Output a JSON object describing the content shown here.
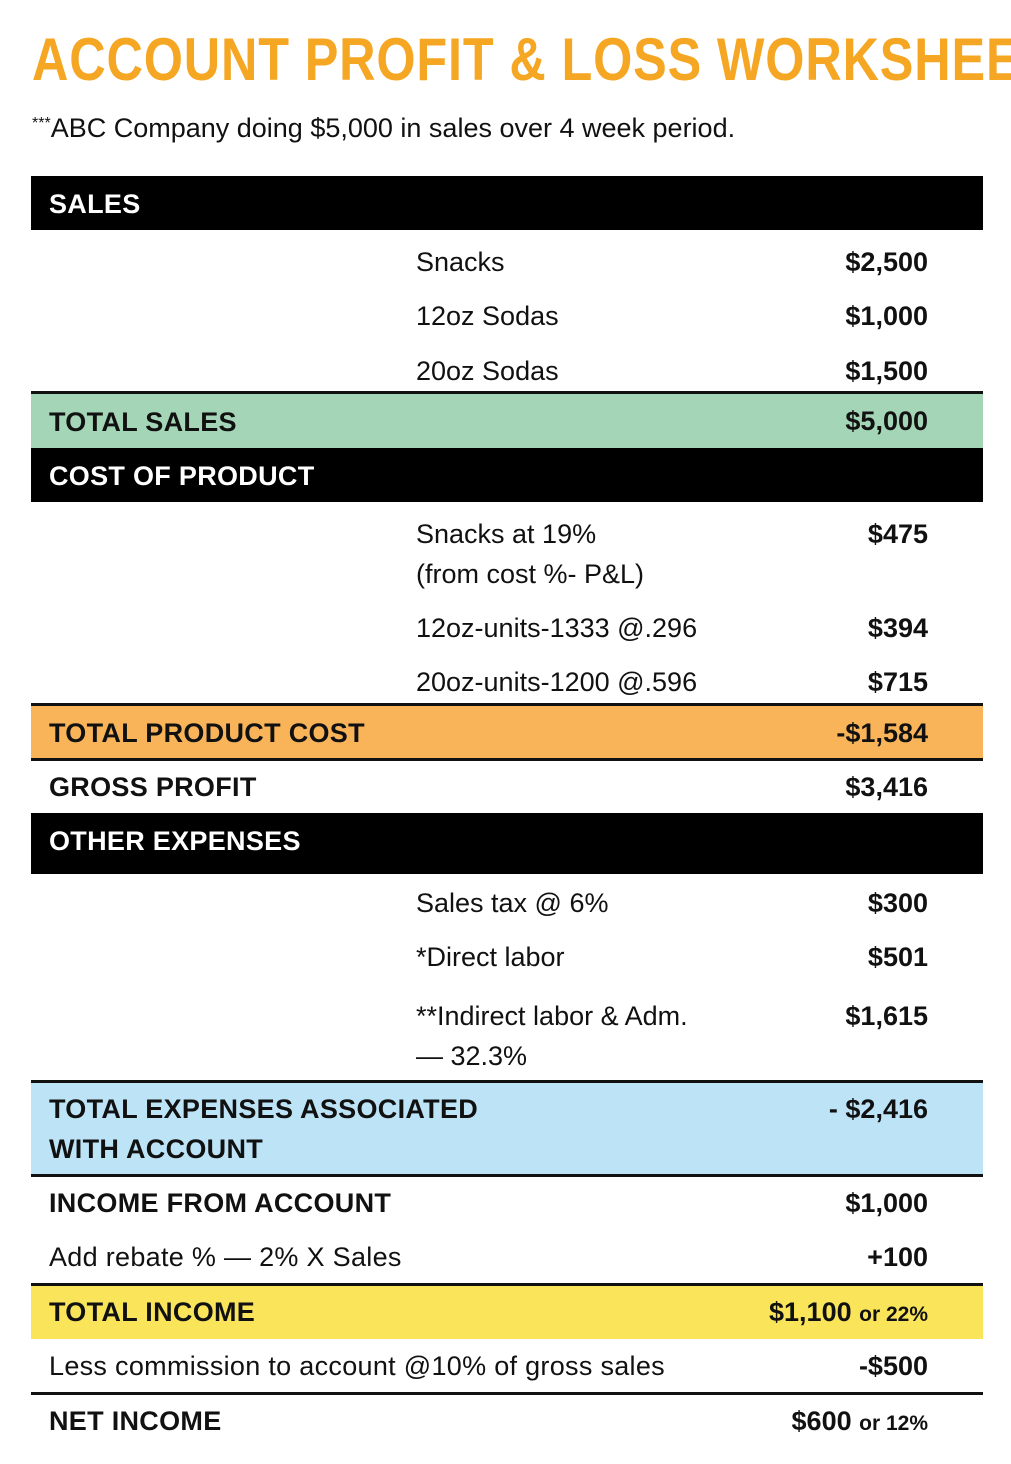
{
  "header": {
    "title": "ACCOUNT PROFIT & LOSS WORKSHEET",
    "note_marker": "***",
    "subtitle": "ABC Company doing $5,000 in sales over 4 week period."
  },
  "colors": {
    "title": "#F5A623",
    "section_head": "#000000",
    "total_sales": "#A3D5B6",
    "total_product_cost": "#F9B45A",
    "total_expenses": "#BCE3F6",
    "total_income": "#FAE55A"
  },
  "sales": {
    "heading": "SALES",
    "items": [
      {
        "label": "Snacks",
        "value": "$2,500"
      },
      {
        "label": "12oz Sodas",
        "value": "$1,000"
      },
      {
        "label": "20oz Sodas",
        "value": "$1,500"
      }
    ],
    "total_label": "TOTAL SALES",
    "total_value": "$5,000"
  },
  "cost_of_product": {
    "heading": "COST OF PRODUCT",
    "items": [
      {
        "label": "Snacks at 19%",
        "label_line2": "(from cost %- P&L)",
        "value": "$475"
      },
      {
        "label": "12oz-units-1333 @.296",
        "value": "$394"
      },
      {
        "label": "20oz-units-1200 @.596",
        "value": "$715"
      }
    ],
    "total_label": "TOTAL PRODUCT COST",
    "total_value": "-$1,584"
  },
  "gross_profit": {
    "label": "GROSS PROFIT",
    "value": "$3,416"
  },
  "other_expenses": {
    "heading": "OTHER EXPENSES",
    "items": [
      {
        "label": "Sales tax @ 6%",
        "value": "$300"
      },
      {
        "label": "*Direct labor",
        "value": "$501"
      },
      {
        "label": "**Indirect labor & Adm.",
        "label_line2": "— 32.3%",
        "value": "$1,615"
      }
    ],
    "total_label": "TOTAL EXPENSES ASSOCIATED",
    "total_label_line2": "WITH ACCOUNT",
    "total_value": "- $2,416"
  },
  "income": {
    "income_label": "INCOME FROM ACCOUNT",
    "income_value": "$1,000",
    "rebate_label": "Add rebate % — 2% X Sales",
    "rebate_value": "+100",
    "total_label": "TOTAL INCOME",
    "total_value": "$1,100",
    "total_pct": "or 22%",
    "commission_label": "Less commission to account @10% of gross sales",
    "commission_value": "-$500",
    "net_label": "NET INCOME",
    "net_value": "$600",
    "net_pct": "or 12%"
  }
}
